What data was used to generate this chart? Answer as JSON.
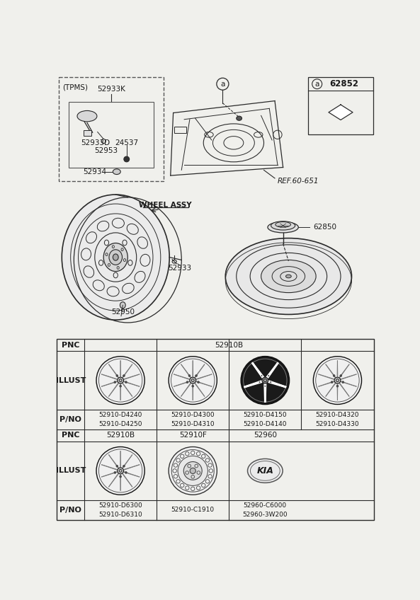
{
  "bg_color": "#f0f0ec",
  "line_color": "#2a2a2a",
  "table": {
    "pnc_row1_label": "52910B",
    "pno_row1": [
      [
        "52910-D4240",
        "52910-D4250"
      ],
      [
        "52910-D4300",
        "52910-D4310"
      ],
      [
        "52910-D4150",
        "52910-D4140"
      ],
      [
        "52910-D4320",
        "52910-D4330"
      ]
    ],
    "pnc_row2": [
      "52910B",
      "52910F",
      "52960"
    ],
    "pno_row2": [
      [
        "52910-D6300",
        "52910-D6310"
      ],
      [
        "52910-C1910"
      ],
      [
        "52960-C6000",
        "52960-3W200"
      ]
    ]
  },
  "labels": {
    "tpms": "(TPMS)",
    "52933K": "52933K",
    "52933D": "52933D",
    "24537": "24537",
    "52953": "52953",
    "52934": "52934",
    "wheel_assy": "WHEEL ASSY",
    "52933": "52933",
    "52950": "52950",
    "ref": "REF.60-651",
    "62850": "62850",
    "62852": "62852",
    "a_label": "a",
    "illust": "ILLUST",
    "pnc": "PNC",
    "pno": "P/NO",
    "kia": "KIA"
  }
}
